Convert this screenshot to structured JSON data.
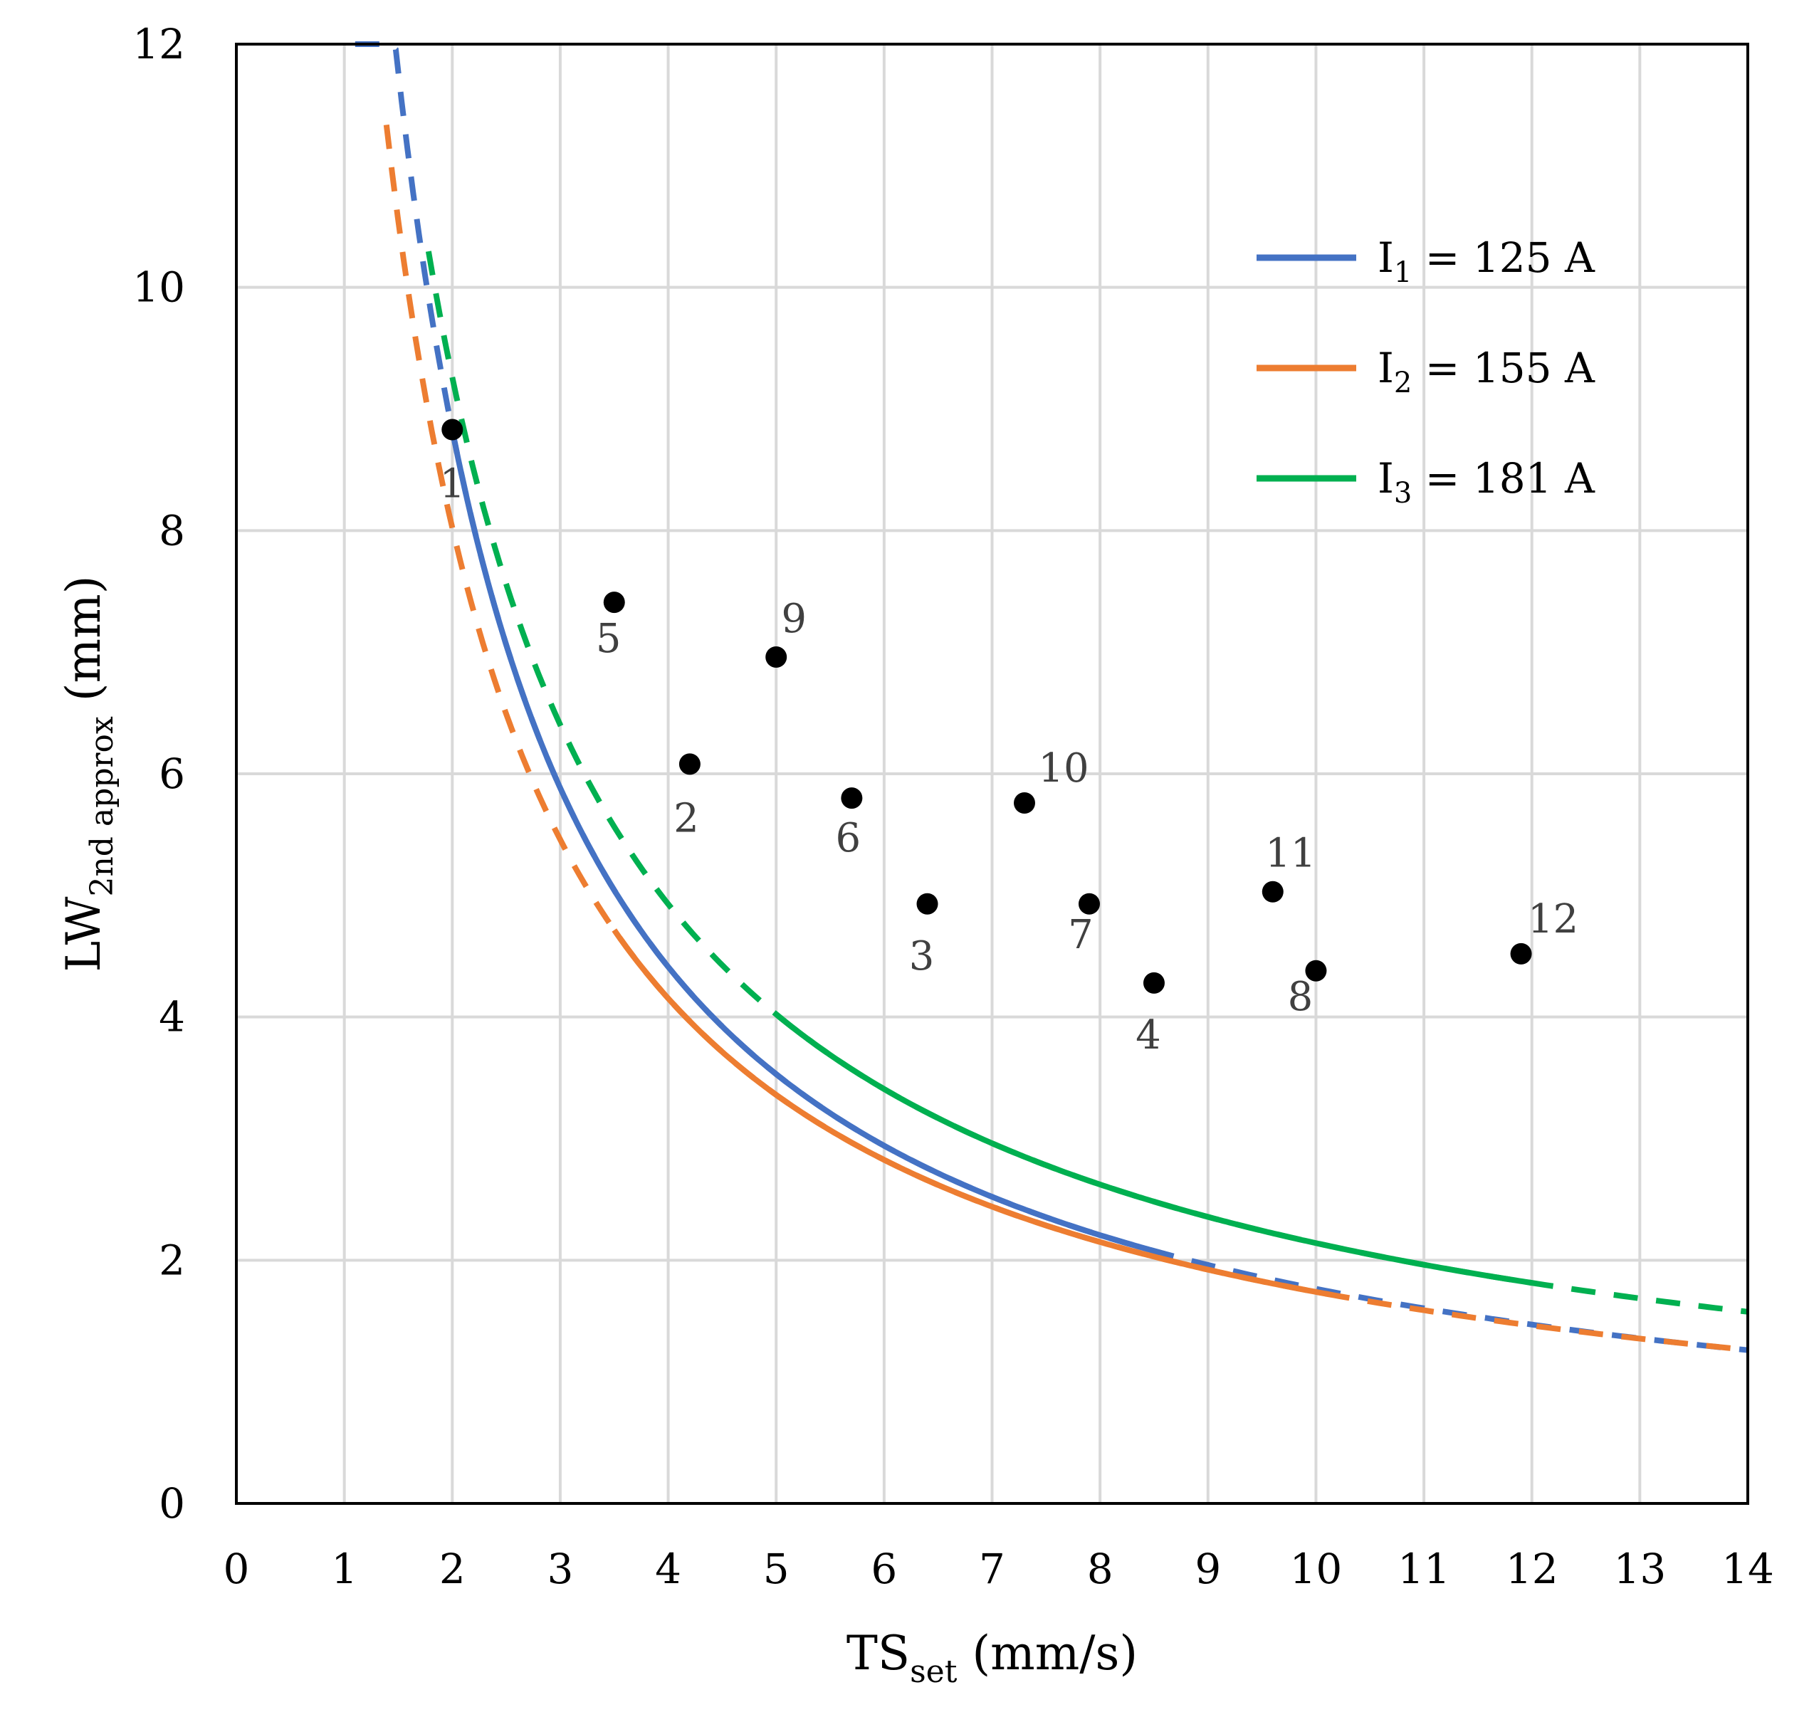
{
  "chart_data": {
    "type": "line",
    "title": "",
    "xlabel": {
      "main": "TS",
      "sub": "set",
      "rest": " (mm/s)"
    },
    "ylabel": {
      "main": "LW",
      "sub": "2nd approx",
      "rest": " (mm)"
    },
    "xlim": [
      0,
      14
    ],
    "ylim": [
      0,
      12
    ],
    "xticks": [
      0,
      1,
      2,
      3,
      4,
      5,
      6,
      7,
      8,
      9,
      10,
      11,
      12,
      13,
      14
    ],
    "yticks": [
      0,
      2,
      4,
      6,
      8,
      10,
      12
    ],
    "grid": true,
    "legend_position": "top-right",
    "series": [
      {
        "name": "I1 = 125 A",
        "legend": {
          "main": "I",
          "sub": "1",
          "rest": " = 125 A"
        },
        "color": "#4472C4",
        "fit_k": 17.65,
        "fit_n": 1.0,
        "solid_range": [
          2.0,
          8.6
        ],
        "dashed_range": [
          1.1,
          14
        ],
        "points": [
          {
            "label": "1",
            "x": 2.0,
            "y": 8.83
          },
          {
            "label": "2",
            "x": 4.2,
            "y": 6.08
          },
          {
            "label": "3",
            "x": 6.4,
            "y": 4.93
          },
          {
            "label": "4",
            "x": 8.5,
            "y": 4.28
          }
        ]
      },
      {
        "name": "I2 = 155 A",
        "legend": {
          "main": "I",
          "sub": "2",
          "rest": " = 155 A"
        },
        "color": "#ED7D31",
        "fit_k": 15.5,
        "fit_n": 0.95,
        "solid_range": [
          3.5,
          10.1
        ],
        "dashed_range": [
          1.39,
          14
        ],
        "points": [
          {
            "label": "5",
            "x": 3.5,
            "y": 7.41
          },
          {
            "label": "6",
            "x": 5.7,
            "y": 5.8
          },
          {
            "label": "7",
            "x": 7.9,
            "y": 4.93
          },
          {
            "label": "8",
            "x": 10.0,
            "y": 4.38
          }
        ]
      },
      {
        "name": "I3 = 181 A",
        "legend": {
          "main": "I",
          "sub": "3",
          "rest": " = 181 A"
        },
        "color": "#00B050",
        "fit_k": 17.4,
        "fit_n": 0.91,
        "solid_range": [
          5.0,
          12.0
        ],
        "dashed_range": [
          1.78,
          14
        ],
        "points": [
          {
            "label": "9",
            "x": 5.0,
            "y": 6.96
          },
          {
            "label": "10",
            "x": 7.3,
            "y": 5.76
          },
          {
            "label": "11",
            "x": 9.6,
            "y": 5.03
          },
          {
            "label": "12",
            "x": 11.9,
            "y": 4.52
          }
        ]
      }
    ]
  }
}
